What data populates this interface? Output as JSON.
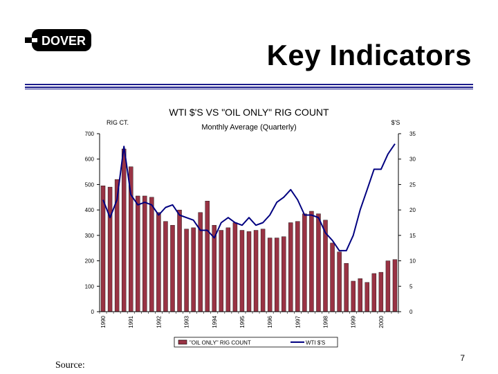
{
  "header": {
    "logo_text": "DOVER",
    "title": "Key Indicators"
  },
  "footer": {
    "page_number": "7",
    "source_label": "Source:"
  },
  "colors": {
    "bar": "#993344",
    "line": "#000080",
    "rule": "#1a1a8a"
  },
  "chart_data": {
    "type": "bar",
    "title": "WTI $'S VS \"OIL ONLY\" RIG COUNT",
    "subtitle": "Monthly Average (Quarterly)",
    "ylabel_left": "RIG CT.",
    "ylabel_right": "$'S",
    "ylim_left": [
      0,
      700
    ],
    "ylim_right": [
      0,
      35
    ],
    "yticks_left": [
      "0",
      "100",
      "200",
      "300",
      "400",
      "500",
      "600",
      "700"
    ],
    "yticks_right": [
      "0",
      "5",
      "10",
      "15",
      "20",
      "25",
      "30",
      "35"
    ],
    "x_tick_labels": [
      "1990",
      "1991",
      "1992",
      "1993",
      "1994",
      "1995",
      "1996",
      "1997",
      "1998",
      "1999",
      "2000"
    ],
    "legend_position": "bottom",
    "series": [
      {
        "name": "\"OIL ONLY\" RIG COUNT",
        "type": "bar",
        "axis": "left",
        "values": [
          495,
          490,
          520,
          640,
          570,
          455,
          455,
          450,
          390,
          355,
          340,
          400,
          325,
          330,
          390,
          435,
          340,
          320,
          330,
          350,
          320,
          315,
          320,
          325,
          290,
          290,
          295,
          350,
          355,
          385,
          395,
          385,
          360,
          270,
          235,
          190,
          120,
          130,
          115,
          150,
          155,
          200,
          205
        ]
      },
      {
        "name": "WTI $'S",
        "type": "line",
        "axis": "right",
        "values": [
          22,
          18.5,
          22,
          32.5,
          23,
          21,
          21.5,
          21,
          19,
          20.5,
          21,
          19,
          18.5,
          18,
          16,
          16,
          14.5,
          17.5,
          18.5,
          17.5,
          17,
          18.5,
          17,
          17.5,
          19,
          21.5,
          22.5,
          24,
          22,
          19,
          19,
          18.5,
          15.5,
          14,
          12,
          12,
          15,
          20,
          24,
          28,
          28,
          31,
          33
        ]
      }
    ]
  }
}
